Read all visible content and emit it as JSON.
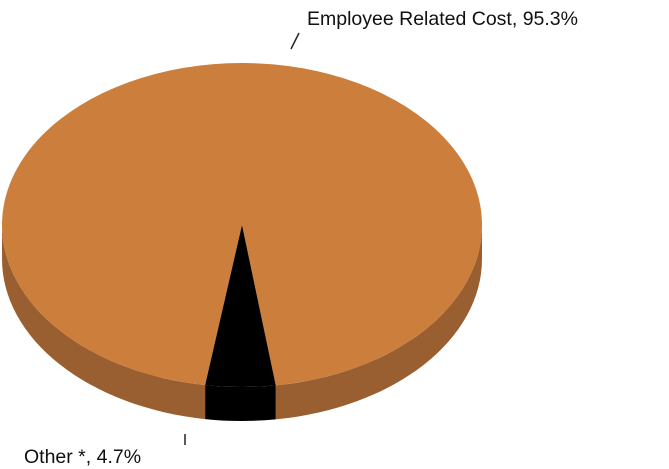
{
  "chart_data": {
    "type": "pie",
    "style": "3d",
    "slices": [
      {
        "label": "Employee Related Cost",
        "value": 95.3,
        "value_text": "95.3%",
        "color": "#CC7F3D",
        "side_color": "#9A5F30"
      },
      {
        "label": "Other *",
        "value": 4.7,
        "value_text": "4.7%",
        "color": "#000000",
        "side_color": "#000000"
      }
    ],
    "legend": "none",
    "labels": "outside with leader lines"
  }
}
